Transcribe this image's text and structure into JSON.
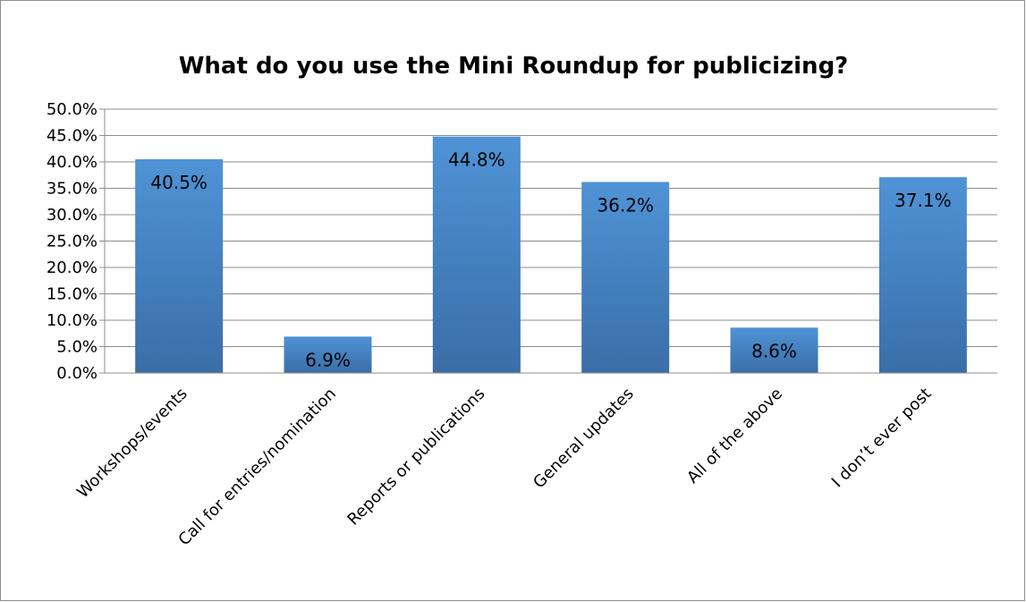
{
  "chart_data": {
    "type": "bar",
    "title": "What do you use the Mini Roundup for publicizing?",
    "xlabel": "",
    "ylabel": "",
    "categories": [
      "Workshops/events",
      "Call for entries/nomination",
      "Reports or publications",
      "General updates",
      "All of the above",
      "I don’t ever post"
    ],
    "values": [
      40.5,
      6.9,
      44.8,
      36.2,
      8.6,
      37.1
    ],
    "data_labels": [
      "40.5%",
      "6.9%",
      "44.8%",
      "36.2%",
      "8.6%",
      "37.1%"
    ],
    "ylim": [
      0,
      50
    ],
    "yticks": [
      0,
      5,
      10,
      15,
      20,
      25,
      30,
      35,
      40,
      45,
      50
    ],
    "ytick_labels": [
      "0.0%",
      "5.0%",
      "10.0%",
      "15.0%",
      "20.0%",
      "25.0%",
      "30.0%",
      "35.0%",
      "40.0%",
      "45.0%",
      "50.0%"
    ],
    "grid": true,
    "legend": "none",
    "bar_color_top": "#4f93d6",
    "bar_color_bottom": "#3a6ea8",
    "grid_color": "#8c8c8c"
  }
}
